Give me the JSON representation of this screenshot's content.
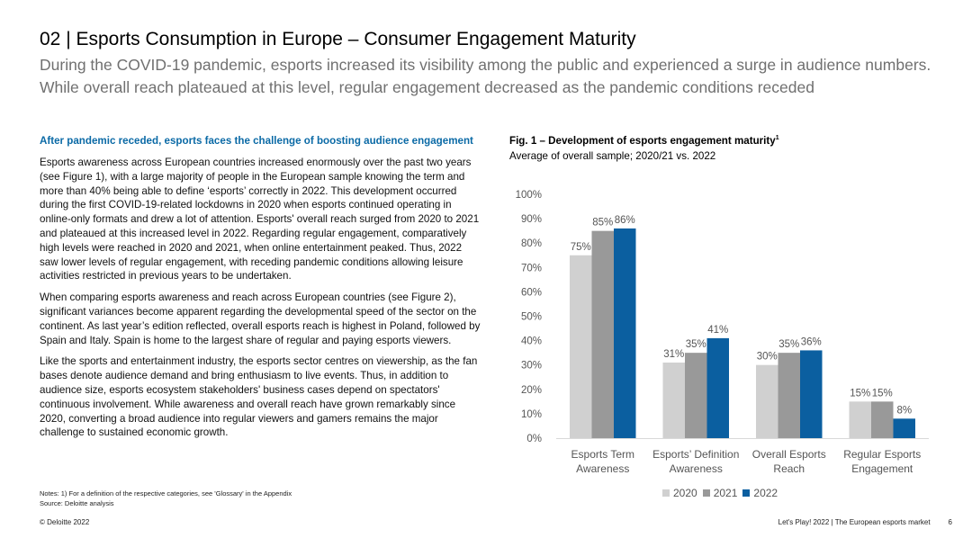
{
  "header": {
    "title": "02 | Esports Consumption in Europe – Consumer Engagement Maturity",
    "subtitle": "During the COVID-19 pandemic, esports increased its visibility among the public and experienced a surge in audience numbers. While overall reach plateaued at this level, regular engagement decreased as the pandemic conditions receded"
  },
  "left": {
    "heading": "After pandemic receded, esports faces the challenge of boosting audience engagement",
    "paragraphs": [
      "Esports awareness across European countries increased enormously over the past two years (see Figure 1), with a large majority of people in the European sample knowing the term and more than 40% being able to define ‘esports’ correctly in 2022. This development occurred during the first COVID-19-related lockdowns in 2020 when esports continued operating in online-only formats and drew a lot of attention. Esports' overall reach surged from 2020 to 2021 and plateaued at this increased level in 2022. Regarding regular engagement, comparatively high levels were reached in 2020 and 2021, when online entertainment peaked. Thus, 2022 saw lower levels of regular engagement, with receding pandemic conditions allowing leisure activities restricted in previous years to be undertaken.",
      "When comparing esports awareness and reach across European countries (see Figure 2), significant variances become apparent regarding the developmental speed of the sector on the continent. As last year’s edition reflected, overall esports reach is highest in Poland, followed by Spain and Italy. Spain is home to the largest share of regular and paying esports viewers.",
      "Like the sports and entertainment industry, the esports sector centres on viewership, as the fan bases denote audience demand and bring enthusiasm to live events. Thus, in addition to audience size, esports ecosystem stakeholders' business cases depend on spectators' continuous involvement. While awareness and overall reach have grown remarkably since 2020, converting a broad audience into regular viewers and gamers remains the major challenge to sustained economic growth."
    ]
  },
  "notes": {
    "line1": "Notes: 1) For a definition of the respective categories, see 'Glossary' in the Appendix",
    "line2": "Source: Deloitte analysis"
  },
  "footer": {
    "copyright": "© Deloitte 2022",
    "report": "Let's Play! 2022 | The European esports market",
    "page": "6"
  },
  "figure": {
    "title": "Fig. 1 – Development of esports engagement maturity",
    "title_sup": "1",
    "subtitle": "Average of overall sample; 2020/21 vs. 2022"
  },
  "chart_data": {
    "type": "bar",
    "title": "Fig. 1 – Development of esports engagement maturity",
    "categories": [
      [
        "Esports Term",
        "Awareness"
      ],
      [
        "Esports’ Definition",
        "Awareness"
      ],
      [
        "Overall Esports",
        "Reach"
      ],
      [
        "Regular Esports",
        "Engagement"
      ]
    ],
    "series": [
      {
        "name": "2020",
        "values": [
          75,
          31,
          30,
          15
        ],
        "labels": [
          "75%",
          "31%",
          "30%",
          "15%"
        ],
        "color": "#d0d0d0"
      },
      {
        "name": "2021",
        "values": [
          85,
          35,
          35,
          15
        ],
        "labels": [
          "85%",
          "35%",
          "35%",
          "15%"
        ],
        "color": "#999999"
      },
      {
        "name": "2022",
        "values": [
          86,
          41,
          36,
          8
        ],
        "labels": [
          "86%",
          "41%",
          "36%",
          "8%"
        ],
        "color": "#0b5fa0"
      }
    ],
    "y_ticks": [
      "0%",
      "10%",
      "20%",
      "30%",
      "40%",
      "50%",
      "60%",
      "70%",
      "80%",
      "90%",
      "100%"
    ],
    "ylim": [
      0,
      100
    ],
    "grid": false,
    "legend": "bottom"
  }
}
